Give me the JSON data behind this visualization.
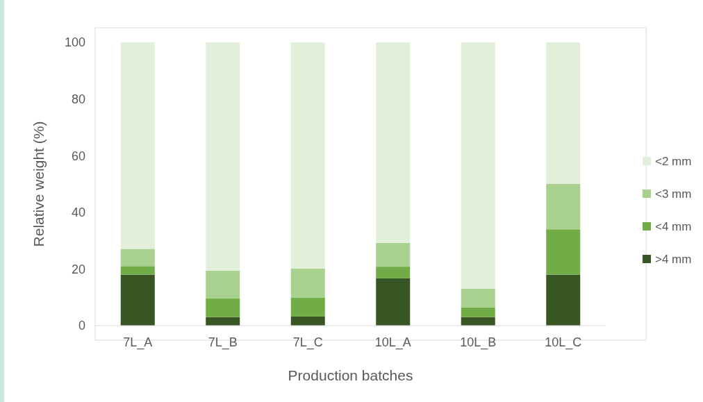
{
  "chart_data": {
    "type": "bar",
    "stacked": true,
    "xlabel": "Production batches",
    "ylabel": "Relative weight (%)",
    "categories": [
      "7L_A",
      "7L_B",
      "7L_C",
      "10L_A",
      "10L_B",
      "10L_C"
    ],
    "series": [
      {
        "name": ">4 mm",
        "color": "#375623",
        "values": [
          18,
          3,
          3.2,
          16.7,
          3,
          18
        ]
      },
      {
        "name": "<4 mm",
        "color": "#70ad47",
        "values": [
          3,
          6.6,
          6.6,
          4.1,
          3.4,
          16
        ]
      },
      {
        "name": "<3 mm",
        "color": "#a9d18e",
        "values": [
          6.1,
          9.8,
          10.3,
          8.4,
          6.6,
          16
        ]
      },
      {
        "name": "<2 mm",
        "color": "#e2efda",
        "values": [
          72.9,
          80.6,
          79.9,
          70.8,
          87,
          50
        ]
      }
    ],
    "ylim": [
      0,
      100
    ],
    "yticks": [
      0,
      20,
      40,
      60,
      80,
      100
    ],
    "legend": "right"
  }
}
